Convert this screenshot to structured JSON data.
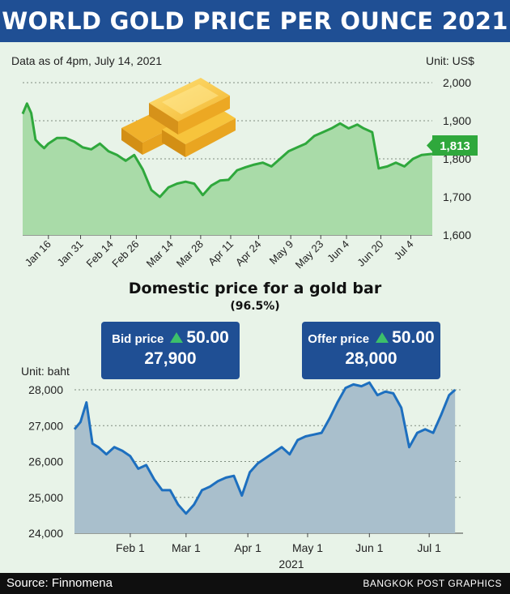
{
  "header": {
    "title": "WORLD GOLD PRICE PER OUNCE 2021"
  },
  "world": {
    "note": "Data as of 4pm, July 14, 2021",
    "unit": "Unit: US$",
    "last_label": "1,813"
  },
  "domestic": {
    "title": "Domestic price for a gold bar",
    "subtitle": "(96.5%)",
    "unit": "Unit: baht",
    "year_label": "2021"
  },
  "bid": {
    "label": "Bid price",
    "change": "50.00",
    "value": "27,900"
  },
  "offer": {
    "label": "Offer price",
    "change": "50.00",
    "value": "28,000"
  },
  "footer": {
    "source": "Source: Finnomena",
    "brand": "BANGKOK POST GRAPHICS"
  },
  "colors": {
    "header": "#1f4f94",
    "world_line": "#2fa83c",
    "world_fill": "#a9dba8",
    "domestic_line": "#1d6fbf",
    "domestic_fill": "#a9bfcc",
    "change_up": "#3cc06a"
  },
  "chart_data": [
    {
      "type": "area",
      "title": "WORLD GOLD PRICE PER OUNCE 2021",
      "ylabel": "Unit: US$",
      "ylim": [
        1600,
        2000
      ],
      "yticks": [
        1600,
        1700,
        1800,
        1900,
        2000
      ],
      "ytick_labels": [
        "1,600",
        "1,700",
        "1,800",
        "1,900",
        "2,000"
      ],
      "xticks": [
        "2021-01-16",
        "2021-01-31",
        "2021-02-14",
        "2021-02-26",
        "2021-03-14",
        "2021-03-28",
        "2021-04-11",
        "2021-04-24",
        "2021-05-09",
        "2021-05-23",
        "2021-06-04",
        "2021-06-20",
        "2021-07-04"
      ],
      "xtick_labels": [
        "Jan 16",
        "Jan 31",
        "Feb 14",
        "Feb 26",
        "Mar 14",
        "Mar 28",
        "Apr 11",
        "Apr 24",
        "May 9",
        "May 23",
        "Jun 4",
        "Jun 20",
        "Jul 4"
      ],
      "xlim": [
        "2021-01-04",
        "2021-07-14"
      ],
      "grid": true,
      "x": [
        "2021-01-04",
        "2021-01-06",
        "2021-01-08",
        "2021-01-10",
        "2021-01-12",
        "2021-01-14",
        "2021-01-16",
        "2021-01-20",
        "2021-01-24",
        "2021-01-28",
        "2021-02-01",
        "2021-02-05",
        "2021-02-09",
        "2021-02-13",
        "2021-02-17",
        "2021-02-21",
        "2021-02-25",
        "2021-03-01",
        "2021-03-05",
        "2021-03-09",
        "2021-03-13",
        "2021-03-17",
        "2021-03-21",
        "2021-03-25",
        "2021-03-29",
        "2021-04-02",
        "2021-04-06",
        "2021-04-10",
        "2021-04-14",
        "2021-04-18",
        "2021-04-22",
        "2021-04-26",
        "2021-04-30",
        "2021-05-04",
        "2021-05-08",
        "2021-05-12",
        "2021-05-16",
        "2021-05-20",
        "2021-05-24",
        "2021-05-28",
        "2021-06-01",
        "2021-06-05",
        "2021-06-09",
        "2021-06-12",
        "2021-06-16",
        "2021-06-19",
        "2021-06-23",
        "2021-06-27",
        "2021-07-01",
        "2021-07-05",
        "2021-07-09",
        "2021-07-14"
      ],
      "values": [
        1918,
        1945,
        1920,
        1850,
        1838,
        1828,
        1840,
        1855,
        1855,
        1845,
        1830,
        1825,
        1840,
        1820,
        1810,
        1795,
        1810,
        1772,
        1718,
        1700,
        1725,
        1735,
        1740,
        1735,
        1705,
        1730,
        1743,
        1745,
        1770,
        1778,
        1785,
        1790,
        1780,
        1800,
        1820,
        1830,
        1840,
        1860,
        1870,
        1880,
        1893,
        1880,
        1890,
        1880,
        1870,
        1775,
        1780,
        1790,
        1780,
        1800,
        1810,
        1813
      ]
    },
    {
      "type": "area",
      "title": "Domestic price for a gold bar",
      "subtitle": "(96.5%)",
      "ylabel": "Unit: baht",
      "xlabel": "2021",
      "ylim": [
        24000,
        28000
      ],
      "yticks": [
        24000,
        25000,
        26000,
        27000,
        28000
      ],
      "ytick_labels": [
        "24,000",
        "25,000",
        "26,000",
        "27,000",
        "28,000"
      ],
      "xticks": [
        "2021-02-01",
        "2021-03-01",
        "2021-04-01",
        "2021-05-01",
        "2021-06-01",
        "2021-07-01"
      ],
      "xtick_labels": [
        "Feb 1",
        "Mar 1",
        "Apr 1",
        "May 1",
        "Jun 1",
        "Jul 1"
      ],
      "xlim": [
        "2021-01-04",
        "2021-07-18"
      ],
      "grid": true,
      "x": [
        "2021-01-04",
        "2021-01-07",
        "2021-01-10",
        "2021-01-13",
        "2021-01-16",
        "2021-01-20",
        "2021-01-24",
        "2021-01-28",
        "2021-02-01",
        "2021-02-05",
        "2021-02-09",
        "2021-02-13",
        "2021-02-17",
        "2021-02-21",
        "2021-02-25",
        "2021-03-01",
        "2021-03-05",
        "2021-03-09",
        "2021-03-13",
        "2021-03-17",
        "2021-03-21",
        "2021-03-25",
        "2021-03-29",
        "2021-04-02",
        "2021-04-06",
        "2021-04-10",
        "2021-04-14",
        "2021-04-18",
        "2021-04-22",
        "2021-04-26",
        "2021-04-30",
        "2021-05-04",
        "2021-05-08",
        "2021-05-12",
        "2021-05-16",
        "2021-05-20",
        "2021-05-24",
        "2021-05-28",
        "2021-06-01",
        "2021-06-05",
        "2021-06-09",
        "2021-06-13",
        "2021-06-17",
        "2021-06-21",
        "2021-06-25",
        "2021-06-29",
        "2021-07-03",
        "2021-07-07",
        "2021-07-11",
        "2021-07-14"
      ],
      "values": [
        26900,
        27100,
        27650,
        26500,
        26400,
        26200,
        26400,
        26300,
        26150,
        25800,
        25900,
        25500,
        25200,
        25200,
        24800,
        24550,
        24800,
        25200,
        25300,
        25450,
        25550,
        25600,
        25050,
        25700,
        25950,
        26100,
        26250,
        26400,
        26200,
        26600,
        26700,
        26750,
        26800,
        27200,
        27650,
        28050,
        28150,
        28100,
        28200,
        27850,
        27950,
        27900,
        27500,
        26400,
        26800,
        26900,
        26800,
        27300,
        27850,
        28000
      ]
    }
  ]
}
